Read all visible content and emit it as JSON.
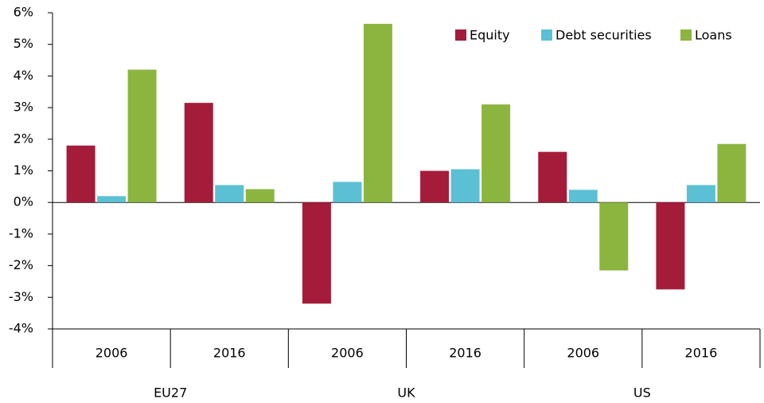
{
  "chart_data": {
    "type": "bar",
    "categories": [
      "2006",
      "2016",
      "2006",
      "2016",
      "2006",
      "2016"
    ],
    "group_labels": [
      "EU27",
      "UK",
      "US"
    ],
    "series": [
      {
        "name": "Equity",
        "color": "#a51c3a",
        "values": [
          1.8,
          3.15,
          -3.2,
          1.0,
          1.6,
          -2.75
        ]
      },
      {
        "name": "Debt securities",
        "color": "#5bc0d4",
        "values": [
          0.2,
          0.55,
          0.65,
          1.05,
          0.4,
          0.55
        ]
      },
      {
        "name": "Loans",
        "color": "#8cb540",
        "values": [
          4.2,
          0.42,
          5.65,
          3.1,
          -2.15,
          1.85
        ]
      }
    ],
    "ylim": [
      -4,
      6
    ],
    "yticks": [
      {
        "value": -4,
        "label": "-4%"
      },
      {
        "value": -3,
        "label": "-3%"
      },
      {
        "value": -2,
        "label": "-2%"
      },
      {
        "value": -1,
        "label": "-1%"
      },
      {
        "value": 0,
        "label": "0%"
      },
      {
        "value": 1,
        "label": "1%"
      },
      {
        "value": 2,
        "label": "2%"
      },
      {
        "value": 3,
        "label": "3%"
      },
      {
        "value": 4,
        "label": "4%"
      },
      {
        "value": 5,
        "label": "5%"
      },
      {
        "value": 6,
        "label": "6%"
      }
    ],
    "legend": "top-right"
  }
}
